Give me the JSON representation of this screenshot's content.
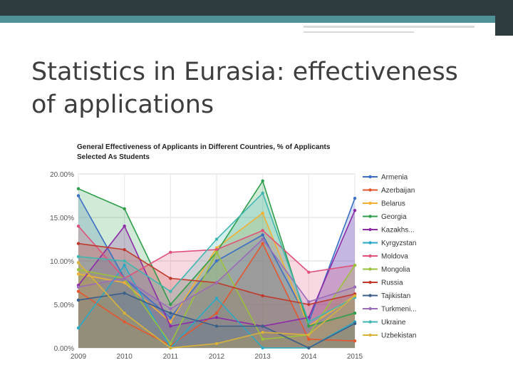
{
  "slide": {
    "title": "Statistics in Eurasia: effectiveness of applications"
  },
  "chart_data": {
    "type": "area",
    "title": "General Effectiveness of Applicants in Different Countries, % of Applicants Selected As Students",
    "title_lines": [
      "General Effectiveness of Applicants in Different Countries, % of Applicants",
      "Selected As Students"
    ],
    "x": [
      "2009",
      "2010",
      "2011",
      "2012",
      "2013",
      "2014",
      "2015"
    ],
    "yticks": [
      "0.00%",
      "5.00%",
      "10.00%",
      "15.00%",
      "20.00%"
    ],
    "ylim": [
      0,
      20
    ],
    "legend_position": "right",
    "series": [
      {
        "name": "Armenia",
        "color": "#3b6fc4",
        "values": [
          17.5,
          8.0,
          3.5,
          10.0,
          13.0,
          3.0,
          17.2
        ]
      },
      {
        "name": "Azerbaijan",
        "color": "#e4572e",
        "values": [
          6.5,
          3.0,
          0.3,
          4.0,
          12.0,
          1.0,
          0.8
        ]
      },
      {
        "name": "Belarus",
        "color": "#f2b134",
        "values": [
          8.5,
          7.5,
          3.0,
          11.5,
          15.5,
          2.5,
          6.0
        ]
      },
      {
        "name": "Georgia",
        "color": "#2e9e4a",
        "values": [
          18.3,
          16.0,
          5.0,
          11.0,
          19.2,
          2.5,
          4.0
        ]
      },
      {
        "name": "Kazakhs...",
        "color": "#8e2aa8",
        "values": [
          7.2,
          14.0,
          2.5,
          3.5,
          2.5,
          3.5,
          15.8
        ]
      },
      {
        "name": "Kyrgyzstan",
        "color": "#29a9c7",
        "values": [
          2.3,
          9.5,
          0.0,
          5.7,
          0.0,
          0.0,
          3.0
        ]
      },
      {
        "name": "Moldova",
        "color": "#e0507a",
        "values": [
          14.0,
          8.0,
          11.0,
          11.3,
          13.5,
          8.7,
          9.5
        ]
      },
      {
        "name": "Mongolia",
        "color": "#9ac23a",
        "values": [
          9.0,
          8.0,
          0.5,
          11.0,
          1.0,
          1.5,
          9.5
        ]
      },
      {
        "name": "Russia",
        "color": "#c0392b",
        "values": [
          12.0,
          11.3,
          8.0,
          7.5,
          6.0,
          5.0,
          6.2
        ]
      },
      {
        "name": "Tajikistan",
        "color": "#3a5f8a",
        "values": [
          5.5,
          6.3,
          4.0,
          2.5,
          2.5,
          0.0,
          2.8
        ]
      },
      {
        "name": "Turkmeni...",
        "color": "#9b6bb8",
        "values": [
          7.0,
          8.0,
          4.5,
          7.5,
          12.5,
          5.3,
          7.0
        ]
      },
      {
        "name": "Ukraine",
        "color": "#3fb7b0",
        "values": [
          10.5,
          10.0,
          6.5,
          12.5,
          17.8,
          3.0,
          5.8
        ]
      },
      {
        "name": "Uzbekistan",
        "color": "#d9b23a",
        "values": [
          9.8,
          4.0,
          0.0,
          0.5,
          1.8,
          1.5,
          6.0
        ]
      }
    ]
  }
}
